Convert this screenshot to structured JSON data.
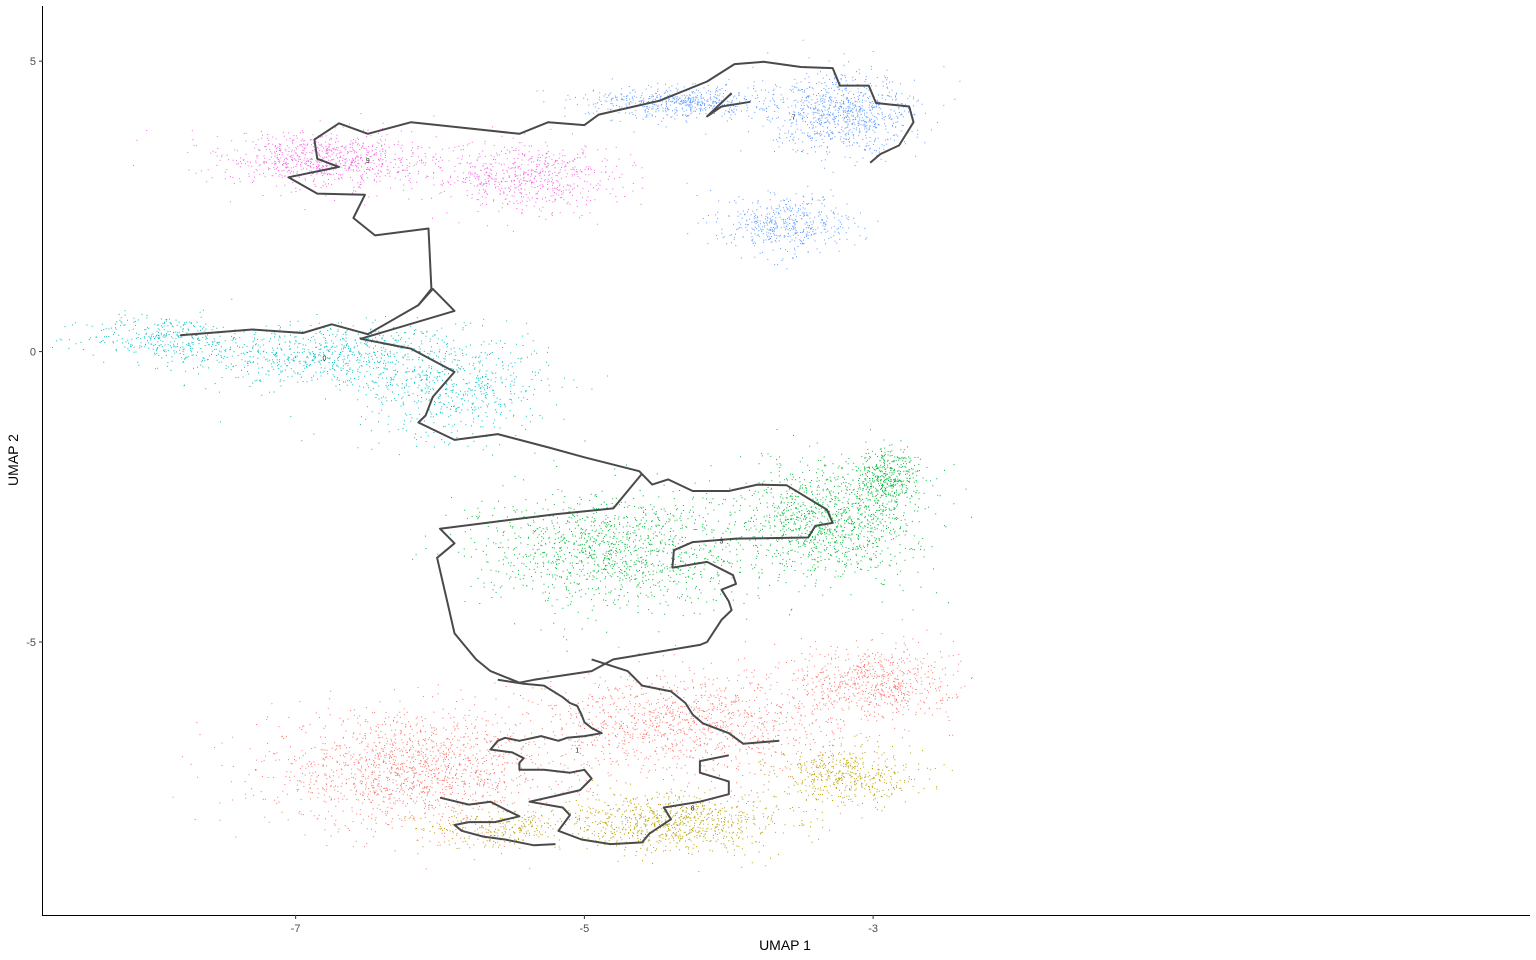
{
  "chart_data": {
    "type": "scatter",
    "title": "",
    "xlabel": "UMAP 1",
    "ylabel": "UMAP 2",
    "xlim": [
      -8.75,
      1.55
    ],
    "ylim": [
      -9.7,
      5.95
    ],
    "xticks": [
      -7,
      -5,
      -3
    ],
    "yticks": [
      -5,
      0,
      5
    ],
    "grid": false,
    "legend": "none",
    "trajectory_color": "#4a4a4a",
    "clusters": [
      {
        "label": "0",
        "color": "#00BFC4",
        "center": [
          -6.8,
          -0.15
        ],
        "n": 1700,
        "blobs": [
          [
            -6.8,
            -0.05,
            0.85,
            0.5,
            0.45
          ],
          [
            -7.9,
            0.25,
            0.5,
            0.35,
            0.2
          ],
          [
            -5.9,
            -0.6,
            0.6,
            0.8,
            0.35
          ]
        ]
      },
      {
        "label": "1",
        "color": "#F8766D",
        "center": [
          -5.05,
          -6.9
        ],
        "n": 3400,
        "blobs": [
          [
            -6.2,
            -7.2,
            0.9,
            0.9,
            0.45
          ],
          [
            -4.3,
            -6.4,
            0.95,
            0.8,
            0.35
          ],
          [
            -3.0,
            -5.7,
            0.5,
            0.6,
            0.2
          ]
        ]
      },
      {
        "label": "3",
        "color": "#00BA38",
        "center": [
          -4.05,
          -3.3
        ],
        "n": 2900,
        "blobs": [
          [
            -4.8,
            -3.4,
            0.85,
            0.9,
            0.45
          ],
          [
            -3.3,
            -2.9,
            0.55,
            0.9,
            0.4
          ],
          [
            -2.9,
            -2.2,
            0.2,
            0.5,
            0.15
          ]
        ]
      },
      {
        "label": "7",
        "color": "#619CFF",
        "center": [
          -3.55,
          4.0
        ],
        "n": 2000,
        "blobs": [
          [
            -3.2,
            4.1,
            0.45,
            0.6,
            0.45
          ],
          [
            -3.6,
            2.2,
            0.4,
            0.45,
            0.25
          ],
          [
            -4.3,
            4.3,
            0.6,
            0.25,
            0.3
          ]
        ]
      },
      {
        "label": "8",
        "color": "#B79F00",
        "center": [
          -4.25,
          -7.9
        ],
        "n": 1600,
        "blobs": [
          [
            -4.4,
            -8.1,
            0.75,
            0.45,
            0.55
          ],
          [
            -3.2,
            -7.3,
            0.45,
            0.45,
            0.3
          ],
          [
            -5.6,
            -8.2,
            0.45,
            0.3,
            0.15
          ]
        ]
      },
      {
        "label": "9",
        "color": "#F564E3",
        "center": [
          -6.5,
          3.25
        ],
        "n": 1500,
        "blobs": [
          [
            -6.8,
            3.3,
            0.65,
            0.45,
            0.55
          ],
          [
            -5.4,
            3.0,
            0.6,
            0.55,
            0.45
          ]
        ]
      }
    ],
    "trajectory": [
      [
        [
          -7.8,
          0.28
        ],
        [
          -7.3,
          0.38
        ],
        [
          -6.95,
          0.32
        ],
        [
          -6.75,
          0.47
        ],
        [
          -6.5,
          0.3
        ],
        [
          -6.15,
          0.8
        ],
        [
          -6.06,
          1.08
        ],
        [
          -6.08,
          2.12
        ],
        [
          -6.45,
          2.0
        ],
        [
          -6.6,
          2.3
        ],
        [
          -6.52,
          2.7
        ],
        [
          -6.85,
          2.72
        ],
        [
          -7.05,
          3.0
        ],
        [
          -6.7,
          3.18
        ],
        [
          -6.85,
          3.32
        ],
        [
          -6.87,
          3.65
        ],
        [
          -6.7,
          3.93
        ],
        [
          -6.5,
          3.75
        ],
        [
          -6.2,
          3.95
        ],
        [
          -5.45,
          3.75
        ],
        [
          -5.25,
          3.95
        ],
        [
          -5.0,
          3.9
        ],
        [
          -4.9,
          4.08
        ],
        [
          -4.48,
          4.32
        ],
        [
          -4.15,
          4.65
        ],
        [
          -3.96,
          4.95
        ],
        [
          -3.76,
          4.99
        ],
        [
          -3.5,
          4.9
        ],
        [
          -3.28,
          4.88
        ],
        [
          -3.23,
          4.58
        ],
        [
          -3.03,
          4.58
        ],
        [
          -2.98,
          4.28
        ],
        [
          -2.75,
          4.22
        ],
        [
          -2.72,
          3.95
        ],
        [
          -2.82,
          3.55
        ],
        [
          -2.95,
          3.4
        ],
        [
          -3.02,
          3.25
        ]
      ],
      [
        [
          -3.98,
          4.45
        ],
        [
          -4.15,
          4.05
        ],
        [
          -4.05,
          4.22
        ],
        [
          -3.85,
          4.3
        ]
      ],
      [
        [
          -6.15,
          0.8
        ],
        [
          -6.05,
          1.08
        ],
        [
          -5.9,
          0.7
        ],
        [
          -6.55,
          0.22
        ],
        [
          -6.2,
          0.05
        ],
        [
          -5.9,
          -0.35
        ],
        [
          -6.05,
          -0.78
        ],
        [
          -6.1,
          -1.1
        ],
        [
          -6.15,
          -1.22
        ],
        [
          -5.9,
          -1.52
        ],
        [
          -5.6,
          -1.42
        ],
        [
          -5.25,
          -1.65
        ],
        [
          -5.0,
          -1.82
        ],
        [
          -4.62,
          -2.06
        ],
        [
          -4.53,
          -2.29
        ],
        [
          -4.42,
          -2.2
        ],
        [
          -4.25,
          -2.4
        ],
        [
          -4.0,
          -2.4
        ],
        [
          -3.8,
          -2.29
        ],
        [
          -3.6,
          -2.3
        ],
        [
          -3.32,
          -2.72
        ],
        [
          -3.28,
          -2.95
        ],
        [
          -3.4,
          -3.0
        ],
        [
          -3.45,
          -3.2
        ],
        [
          -3.95,
          -3.22
        ],
        [
          -4.25,
          -3.28
        ],
        [
          -4.38,
          -3.42
        ],
        [
          -4.39,
          -3.72
        ],
        [
          -4.15,
          -3.62
        ],
        [
          -3.97,
          -3.85
        ],
        [
          -3.95,
          -4.0
        ],
        [
          -4.05,
          -4.1
        ],
        [
          -4.0,
          -4.3
        ],
        [
          -3.98,
          -4.45
        ],
        [
          -4.05,
          -4.62
        ],
        [
          -4.15,
          -5.0
        ],
        [
          -4.2,
          -5.05
        ],
        [
          -4.8,
          -5.3
        ],
        [
          -4.95,
          -5.5
        ],
        [
          -5.35,
          -5.65
        ],
        [
          -5.45,
          -5.7
        ],
        [
          -5.65,
          -5.5
        ],
        [
          -5.75,
          -5.3
        ],
        [
          -5.9,
          -4.85
        ],
        [
          -5.95,
          -4.3
        ],
        [
          -6.02,
          -3.55
        ],
        [
          -5.9,
          -3.3
        ],
        [
          -6.0,
          -3.05
        ],
        [
          -5.2,
          -2.8
        ],
        [
          -4.8,
          -2.7
        ],
        [
          -4.6,
          -2.1
        ]
      ],
      [
        [
          -4.95,
          -5.3
        ],
        [
          -4.7,
          -5.5
        ],
        [
          -4.6,
          -5.75
        ],
        [
          -4.4,
          -5.85
        ],
        [
          -4.3,
          -6.05
        ],
        [
          -4.25,
          -6.25
        ],
        [
          -4.18,
          -6.4
        ],
        [
          -4.0,
          -6.57
        ],
        [
          -3.9,
          -6.75
        ],
        [
          -3.65,
          -6.7
        ]
      ],
      [
        [
          -5.6,
          -5.65
        ],
        [
          -5.42,
          -5.72
        ],
        [
          -5.28,
          -5.75
        ],
        [
          -5.15,
          -5.95
        ],
        [
          -5.1,
          -6.05
        ],
        [
          -5.05,
          -6.1
        ],
        [
          -5.02,
          -6.25
        ],
        [
          -5.0,
          -6.38
        ],
        [
          -4.95,
          -6.48
        ],
        [
          -4.88,
          -6.57
        ],
        [
          -5.0,
          -6.62
        ],
        [
          -5.12,
          -6.65
        ],
        [
          -5.18,
          -6.7
        ],
        [
          -5.3,
          -6.62
        ],
        [
          -5.45,
          -6.7
        ],
        [
          -5.55,
          -6.65
        ],
        [
          -5.6,
          -6.7
        ],
        [
          -5.65,
          -6.85
        ],
        [
          -5.5,
          -6.9
        ],
        [
          -5.42,
          -7.0
        ],
        [
          -5.45,
          -7.08
        ],
        [
          -5.45,
          -7.2
        ],
        [
          -5.28,
          -7.2
        ],
        [
          -5.1,
          -7.25
        ],
        [
          -5.0,
          -7.2
        ],
        [
          -4.95,
          -7.35
        ],
        [
          -5.03,
          -7.55
        ],
        [
          -5.2,
          -7.65
        ],
        [
          -5.38,
          -7.75
        ],
        [
          -5.15,
          -7.85
        ],
        [
          -5.1,
          -7.98
        ],
        [
          -5.18,
          -8.25
        ],
        [
          -5.02,
          -8.4
        ],
        [
          -4.82,
          -8.48
        ],
        [
          -4.6,
          -8.45
        ],
        [
          -4.55,
          -8.3
        ],
        [
          -4.4,
          -8.05
        ],
        [
          -4.45,
          -7.85
        ],
        [
          -4.2,
          -7.75
        ],
        [
          -4.0,
          -7.62
        ],
        [
          -4.0,
          -7.4
        ],
        [
          -4.2,
          -7.25
        ],
        [
          -4.2,
          -7.05
        ],
        [
          -4.0,
          -6.95
        ]
      ],
      [
        [
          -6.0,
          -7.68
        ],
        [
          -5.8,
          -7.8
        ],
        [
          -5.65,
          -7.75
        ],
        [
          -5.55,
          -7.88
        ],
        [
          -5.45,
          -8.0
        ],
        [
          -5.62,
          -8.1
        ],
        [
          -5.8,
          -8.1
        ],
        [
          -5.9,
          -8.15
        ],
        [
          -5.85,
          -8.25
        ],
        [
          -5.7,
          -8.35
        ],
        [
          -5.55,
          -8.4
        ],
        [
          -5.35,
          -8.5
        ],
        [
          -5.2,
          -8.48
        ]
      ]
    ]
  }
}
